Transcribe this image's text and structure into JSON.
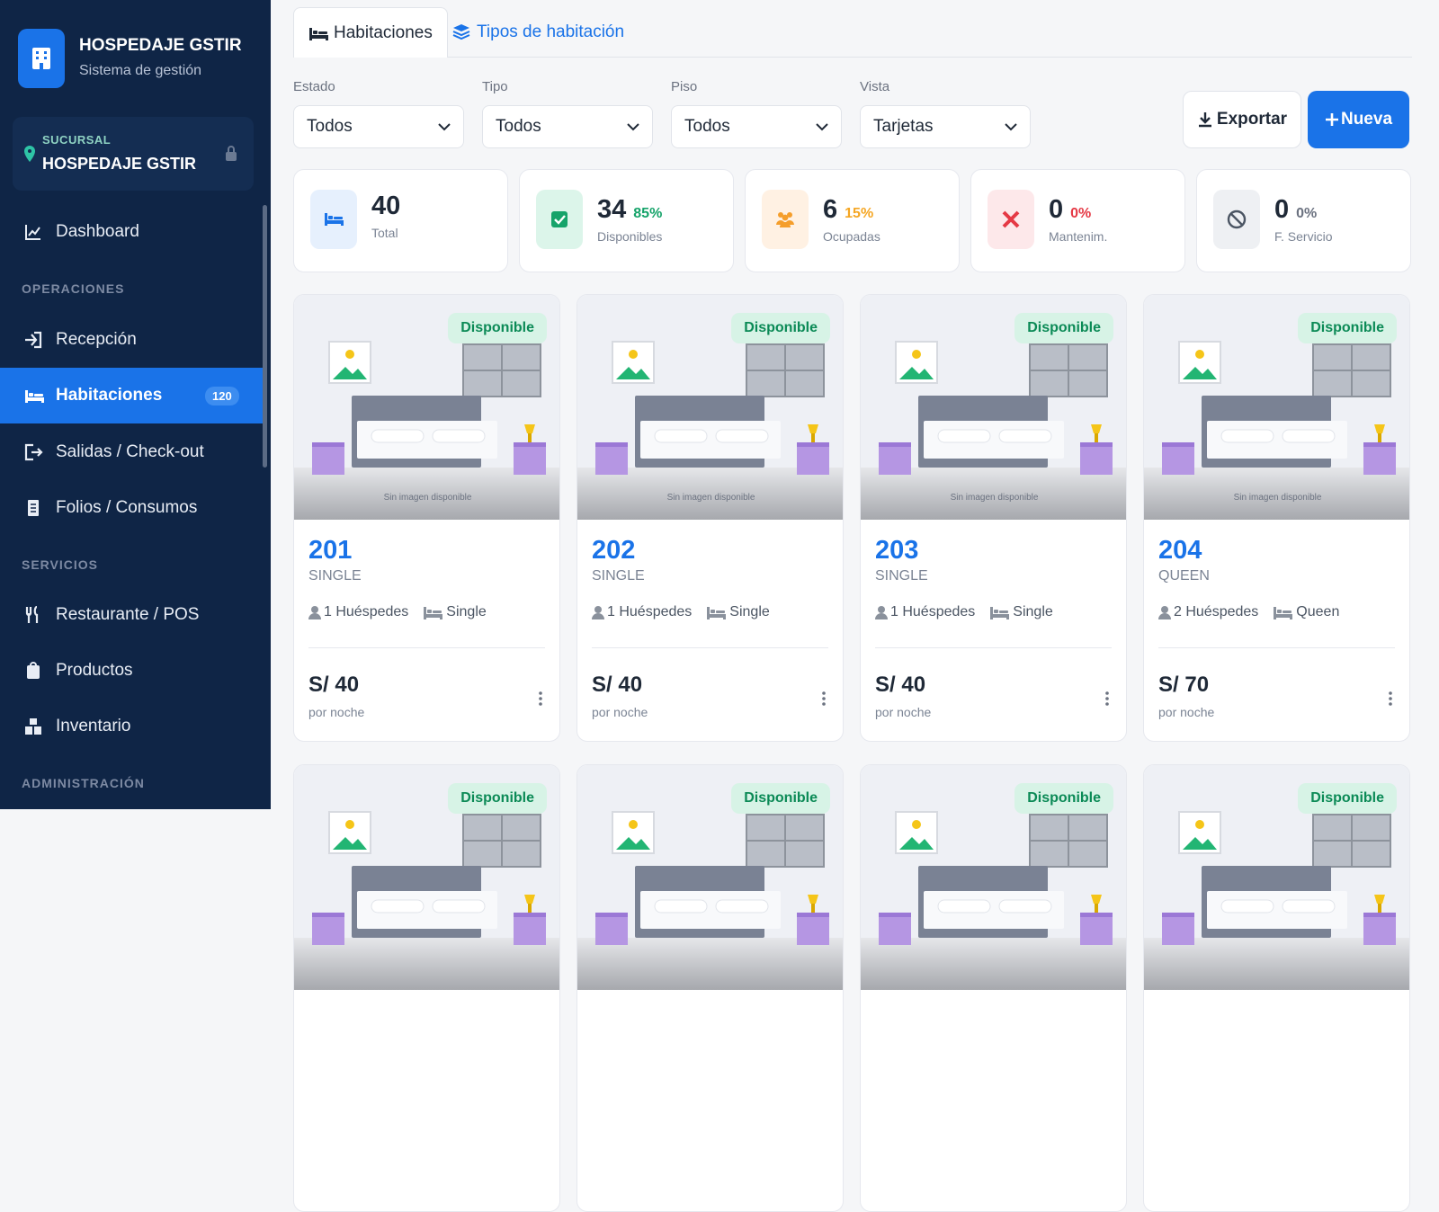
{
  "sidebar": {
    "brand_title": "HOSPEDAJE GSTIR",
    "brand_subtitle": "Sistema de gestión",
    "branch_label": "SUCURSAL",
    "branch_name": "HOSPEDAJE GSTIR",
    "nav": [
      {
        "label": "Dashboard"
      },
      {
        "section": "OPERACIONES"
      },
      {
        "label": "Recepción"
      },
      {
        "label": "Habitaciones",
        "badge": "120",
        "active": true
      },
      {
        "label": "Salidas / Check-out"
      },
      {
        "label": "Folios / Consumos"
      },
      {
        "section": "SERVICIOS"
      },
      {
        "label": "Restaurante / POS"
      },
      {
        "label": "Productos"
      },
      {
        "label": "Inventario"
      },
      {
        "section": "ADMINISTRACIÓN"
      }
    ]
  },
  "tabs": [
    "Habitaciones",
    "Tipos de habitación"
  ],
  "filters": [
    {
      "label": "Estado",
      "value": "Todos"
    },
    {
      "label": "Tipo",
      "value": "Todos"
    },
    {
      "label": "Piso",
      "value": "Todos"
    },
    {
      "label": "Vista",
      "value": "Tarjetas"
    }
  ],
  "actions": {
    "export": "Exportar",
    "new": "Nueva"
  },
  "stats": [
    {
      "value": "40",
      "label": "Total"
    },
    {
      "value": "34",
      "percent": "85%",
      "label": "Disponibles"
    },
    {
      "value": "6",
      "percent": "15%",
      "label": "Ocupadas"
    },
    {
      "value": "0",
      "percent": "0%",
      "label": "Mantenim."
    },
    {
      "value": "0",
      "percent": "0%",
      "label": "F. Servicio"
    }
  ],
  "rooms": [
    {
      "status": "Disponible",
      "image_text": "Sin imagen disponible",
      "number": "201",
      "type": "SINGLE",
      "guests": "1 Huéspedes",
      "bed": "Single",
      "price": "S/ 40",
      "price_unit": "por noche"
    },
    {
      "status": "Disponible",
      "image_text": "Sin imagen disponible",
      "number": "202",
      "type": "SINGLE",
      "guests": "1 Huéspedes",
      "bed": "Single",
      "price": "S/ 40",
      "price_unit": "por noche"
    },
    {
      "status": "Disponible",
      "image_text": "Sin imagen disponible",
      "number": "203",
      "type": "SINGLE",
      "guests": "1 Huéspedes",
      "bed": "Single",
      "price": "S/ 40",
      "price_unit": "por noche"
    },
    {
      "status": "Disponible",
      "image_text": "Sin imagen disponible",
      "number": "204",
      "type": "QUEEN",
      "guests": "2 Huéspedes",
      "bed": "Queen",
      "price": "S/ 70",
      "price_unit": "por noche"
    },
    {
      "status": "Disponible"
    },
    {
      "status": "Disponible"
    },
    {
      "status": "Disponible"
    },
    {
      "status": "Disponible"
    }
  ]
}
